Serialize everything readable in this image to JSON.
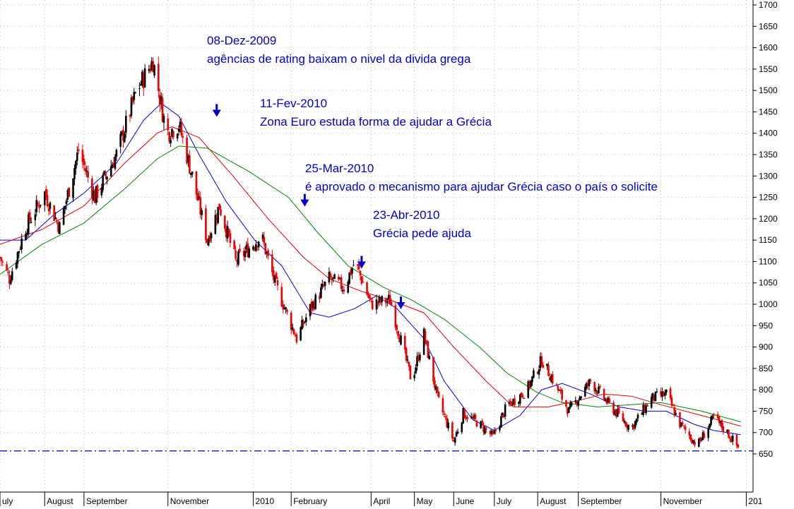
{
  "chart_data": {
    "type": "candlestick",
    "title": "",
    "xlabel": "",
    "ylabel": "",
    "ylim": [
      600,
      1720
    ],
    "y_ticks": [
      650,
      700,
      750,
      800,
      850,
      900,
      950,
      1000,
      1050,
      1100,
      1150,
      1200,
      1250,
      1300,
      1350,
      1400,
      1450,
      1500,
      1550,
      1600,
      1650,
      1700
    ],
    "x_range": [
      "2009-07-01",
      "2011-01-08"
    ],
    "x_labels": [
      {
        "label": "uly",
        "date": "2009-07-01"
      },
      {
        "label": "August",
        "date": "2009-08-03"
      },
      {
        "label": "September",
        "date": "2009-09-01"
      },
      {
        "label": "November",
        "date": "2009-11-02"
      },
      {
        "label": "2010",
        "date": "2010-01-04"
      },
      {
        "label": "February",
        "date": "2010-02-01"
      },
      {
        "label": "April",
        "date": "2010-04-01"
      },
      {
        "label": "May",
        "date": "2010-05-03"
      },
      {
        "label": "June",
        "date": "2010-06-01"
      },
      {
        "label": "July",
        "date": "2010-07-01"
      },
      {
        "label": "August",
        "date": "2010-08-02"
      },
      {
        "label": "September",
        "date": "2010-09-01"
      },
      {
        "label": "November",
        "date": "2010-11-01"
      },
      {
        "label": "201",
        "date": "2011-01-03"
      }
    ],
    "grid": true,
    "support_line": 657,
    "price_path": [
      {
        "date": "2009-07-01",
        "close": 1110
      },
      {
        "date": "2009-07-08",
        "close": 1060
      },
      {
        "date": "2009-07-20",
        "close": 1180
      },
      {
        "date": "2009-08-03",
        "close": 1260
      },
      {
        "date": "2009-08-14",
        "close": 1180
      },
      {
        "date": "2009-08-28",
        "close": 1360
      },
      {
        "date": "2009-09-09",
        "close": 1250
      },
      {
        "date": "2009-09-25",
        "close": 1350
      },
      {
        "date": "2009-10-10",
        "close": 1500
      },
      {
        "date": "2009-10-22",
        "close": 1570
      },
      {
        "date": "2009-11-01",
        "close": 1400
      },
      {
        "date": "2009-11-10",
        "close": 1420
      },
      {
        "date": "2009-11-20",
        "close": 1300
      },
      {
        "date": "2009-12-01",
        "close": 1150
      },
      {
        "date": "2009-12-10",
        "close": 1230
      },
      {
        "date": "2009-12-22",
        "close": 1100
      },
      {
        "date": "2010-01-10",
        "close": 1160
      },
      {
        "date": "2010-01-20",
        "close": 1050
      },
      {
        "date": "2010-02-05",
        "close": 920
      },
      {
        "date": "2010-02-15",
        "close": 990
      },
      {
        "date": "2010-03-01",
        "close": 1060
      },
      {
        "date": "2010-03-12",
        "close": 1040
      },
      {
        "date": "2010-03-20",
        "close": 1100
      },
      {
        "date": "2010-04-01",
        "close": 1000
      },
      {
        "date": "2010-04-15",
        "close": 1010
      },
      {
        "date": "2010-05-01",
        "close": 820
      },
      {
        "date": "2010-05-10",
        "close": 930
      },
      {
        "date": "2010-05-20",
        "close": 780
      },
      {
        "date": "2010-06-01",
        "close": 680
      },
      {
        "date": "2010-06-08",
        "close": 745
      },
      {
        "date": "2010-06-20",
        "close": 720
      },
      {
        "date": "2010-06-30",
        "close": 690
      },
      {
        "date": "2010-07-10",
        "close": 760
      },
      {
        "date": "2010-07-25",
        "close": 800
      },
      {
        "date": "2010-08-05",
        "close": 870
      },
      {
        "date": "2010-08-12",
        "close": 830
      },
      {
        "date": "2010-08-25",
        "close": 750
      },
      {
        "date": "2010-09-10",
        "close": 820
      },
      {
        "date": "2010-09-25",
        "close": 760
      },
      {
        "date": "2010-10-10",
        "close": 710
      },
      {
        "date": "2010-10-25",
        "close": 780
      },
      {
        "date": "2010-11-05",
        "close": 790
      },
      {
        "date": "2010-11-15",
        "close": 720
      },
      {
        "date": "2010-11-28",
        "close": 670
      },
      {
        "date": "2010-12-10",
        "close": 735
      },
      {
        "date": "2010-12-20",
        "close": 700
      },
      {
        "date": "2010-12-28",
        "close": 665
      }
    ],
    "moving_averages": [
      {
        "color": "#0000ee",
        "points": [
          {
            "date": "2009-07-01",
            "value": 1150
          },
          {
            "date": "2009-07-20",
            "value": 1150
          },
          {
            "date": "2009-08-10",
            "value": 1210
          },
          {
            "date": "2009-09-01",
            "value": 1260
          },
          {
            "date": "2009-09-25",
            "value": 1330
          },
          {
            "date": "2009-10-15",
            "value": 1430
          },
          {
            "date": "2009-10-28",
            "value": 1470
          },
          {
            "date": "2009-11-10",
            "value": 1440
          },
          {
            "date": "2009-11-25",
            "value": 1350
          },
          {
            "date": "2009-12-15",
            "value": 1240
          },
          {
            "date": "2010-01-05",
            "value": 1150
          },
          {
            "date": "2010-01-25",
            "value": 1090
          },
          {
            "date": "2010-02-15",
            "value": 980
          },
          {
            "date": "2010-03-01",
            "value": 970
          },
          {
            "date": "2010-03-20",
            "value": 990
          },
          {
            "date": "2010-04-05",
            "value": 1020
          },
          {
            "date": "2010-04-20",
            "value": 990
          },
          {
            "date": "2010-05-10",
            "value": 920
          },
          {
            "date": "2010-05-25",
            "value": 820
          },
          {
            "date": "2010-06-15",
            "value": 730
          },
          {
            "date": "2010-07-01",
            "value": 705
          },
          {
            "date": "2010-07-20",
            "value": 740
          },
          {
            "date": "2010-08-05",
            "value": 800
          },
          {
            "date": "2010-08-20",
            "value": 815
          },
          {
            "date": "2010-09-10",
            "value": 790
          },
          {
            "date": "2010-10-01",
            "value": 760
          },
          {
            "date": "2010-10-20",
            "value": 750
          },
          {
            "date": "2010-11-05",
            "value": 750
          },
          {
            "date": "2010-11-25",
            "value": 720
          },
          {
            "date": "2010-12-10",
            "value": 705
          },
          {
            "date": "2010-12-30",
            "value": 695
          }
        ]
      },
      {
        "color": "#ee0000",
        "points": [
          {
            "date": "2009-07-01",
            "value": 1140
          },
          {
            "date": "2009-08-01",
            "value": 1175
          },
          {
            "date": "2009-09-01",
            "value": 1230
          },
          {
            "date": "2009-10-01",
            "value": 1330
          },
          {
            "date": "2009-10-25",
            "value": 1400
          },
          {
            "date": "2009-11-05",
            "value": 1415
          },
          {
            "date": "2009-11-25",
            "value": 1390
          },
          {
            "date": "2009-12-20",
            "value": 1300
          },
          {
            "date": "2010-01-15",
            "value": 1200
          },
          {
            "date": "2010-02-10",
            "value": 1110
          },
          {
            "date": "2010-03-01",
            "value": 1060
          },
          {
            "date": "2010-03-25",
            "value": 1030
          },
          {
            "date": "2010-04-15",
            "value": 1010
          },
          {
            "date": "2010-05-10",
            "value": 980
          },
          {
            "date": "2010-06-01",
            "value": 900
          },
          {
            "date": "2010-06-25",
            "value": 820
          },
          {
            "date": "2010-07-15",
            "value": 760
          },
          {
            "date": "2010-08-10",
            "value": 760
          },
          {
            "date": "2010-09-01",
            "value": 775
          },
          {
            "date": "2010-09-20",
            "value": 790
          },
          {
            "date": "2010-10-10",
            "value": 785
          },
          {
            "date": "2010-11-01",
            "value": 765
          },
          {
            "date": "2010-12-01",
            "value": 740
          },
          {
            "date": "2010-12-30",
            "value": 715
          }
        ]
      },
      {
        "color": "#008800",
        "points": [
          {
            "date": "2009-07-01",
            "value": 1070
          },
          {
            "date": "2009-08-01",
            "value": 1140
          },
          {
            "date": "2009-09-01",
            "value": 1190
          },
          {
            "date": "2009-10-01",
            "value": 1270
          },
          {
            "date": "2009-10-25",
            "value": 1340
          },
          {
            "date": "2009-11-10",
            "value": 1370
          },
          {
            "date": "2009-12-01",
            "value": 1365
          },
          {
            "date": "2010-01-01",
            "value": 1310
          },
          {
            "date": "2010-01-30",
            "value": 1250
          },
          {
            "date": "2010-02-20",
            "value": 1170
          },
          {
            "date": "2010-03-15",
            "value": 1090
          },
          {
            "date": "2010-04-10",
            "value": 1040
          },
          {
            "date": "2010-05-01",
            "value": 1010
          },
          {
            "date": "2010-05-25",
            "value": 965
          },
          {
            "date": "2010-06-20",
            "value": 900
          },
          {
            "date": "2010-07-10",
            "value": 840
          },
          {
            "date": "2010-08-01",
            "value": 795
          },
          {
            "date": "2010-08-20",
            "value": 770
          },
          {
            "date": "2010-09-15",
            "value": 760
          },
          {
            "date": "2010-10-10",
            "value": 765
          },
          {
            "date": "2010-11-01",
            "value": 770
          },
          {
            "date": "2010-12-01",
            "value": 750
          },
          {
            "date": "2010-12-30",
            "value": 725
          }
        ]
      }
    ],
    "annotations": [
      {
        "date_line": "08-Dez-2009",
        "text": "agências de rating baixam o nivel da divida grega",
        "arrow_date": "2009-12-08",
        "arrow_value": 1445
      },
      {
        "date_line": "11-Fev-2010",
        "text": "Zona Euro estuda forma de ajudar a Grécia",
        "arrow_date": "2010-02-11",
        "arrow_value": 1235
      },
      {
        "date_line": "25-Mar-2010",
        "text": "é aprovado o mecanismo para ajudar Grécia caso o país o solicite",
        "arrow_date": "2010-03-25",
        "arrow_value": 1090
      },
      {
        "date_line": "23-Abr-2010",
        "text": "Grécia pede ajuda",
        "arrow_date": "2010-04-23",
        "arrow_value": 995
      }
    ],
    "colors": {
      "up": "#000000",
      "down": "#ee0000",
      "annotation": "#0000cc",
      "grid": "#b8b8b8",
      "support": "#0000aa"
    }
  }
}
